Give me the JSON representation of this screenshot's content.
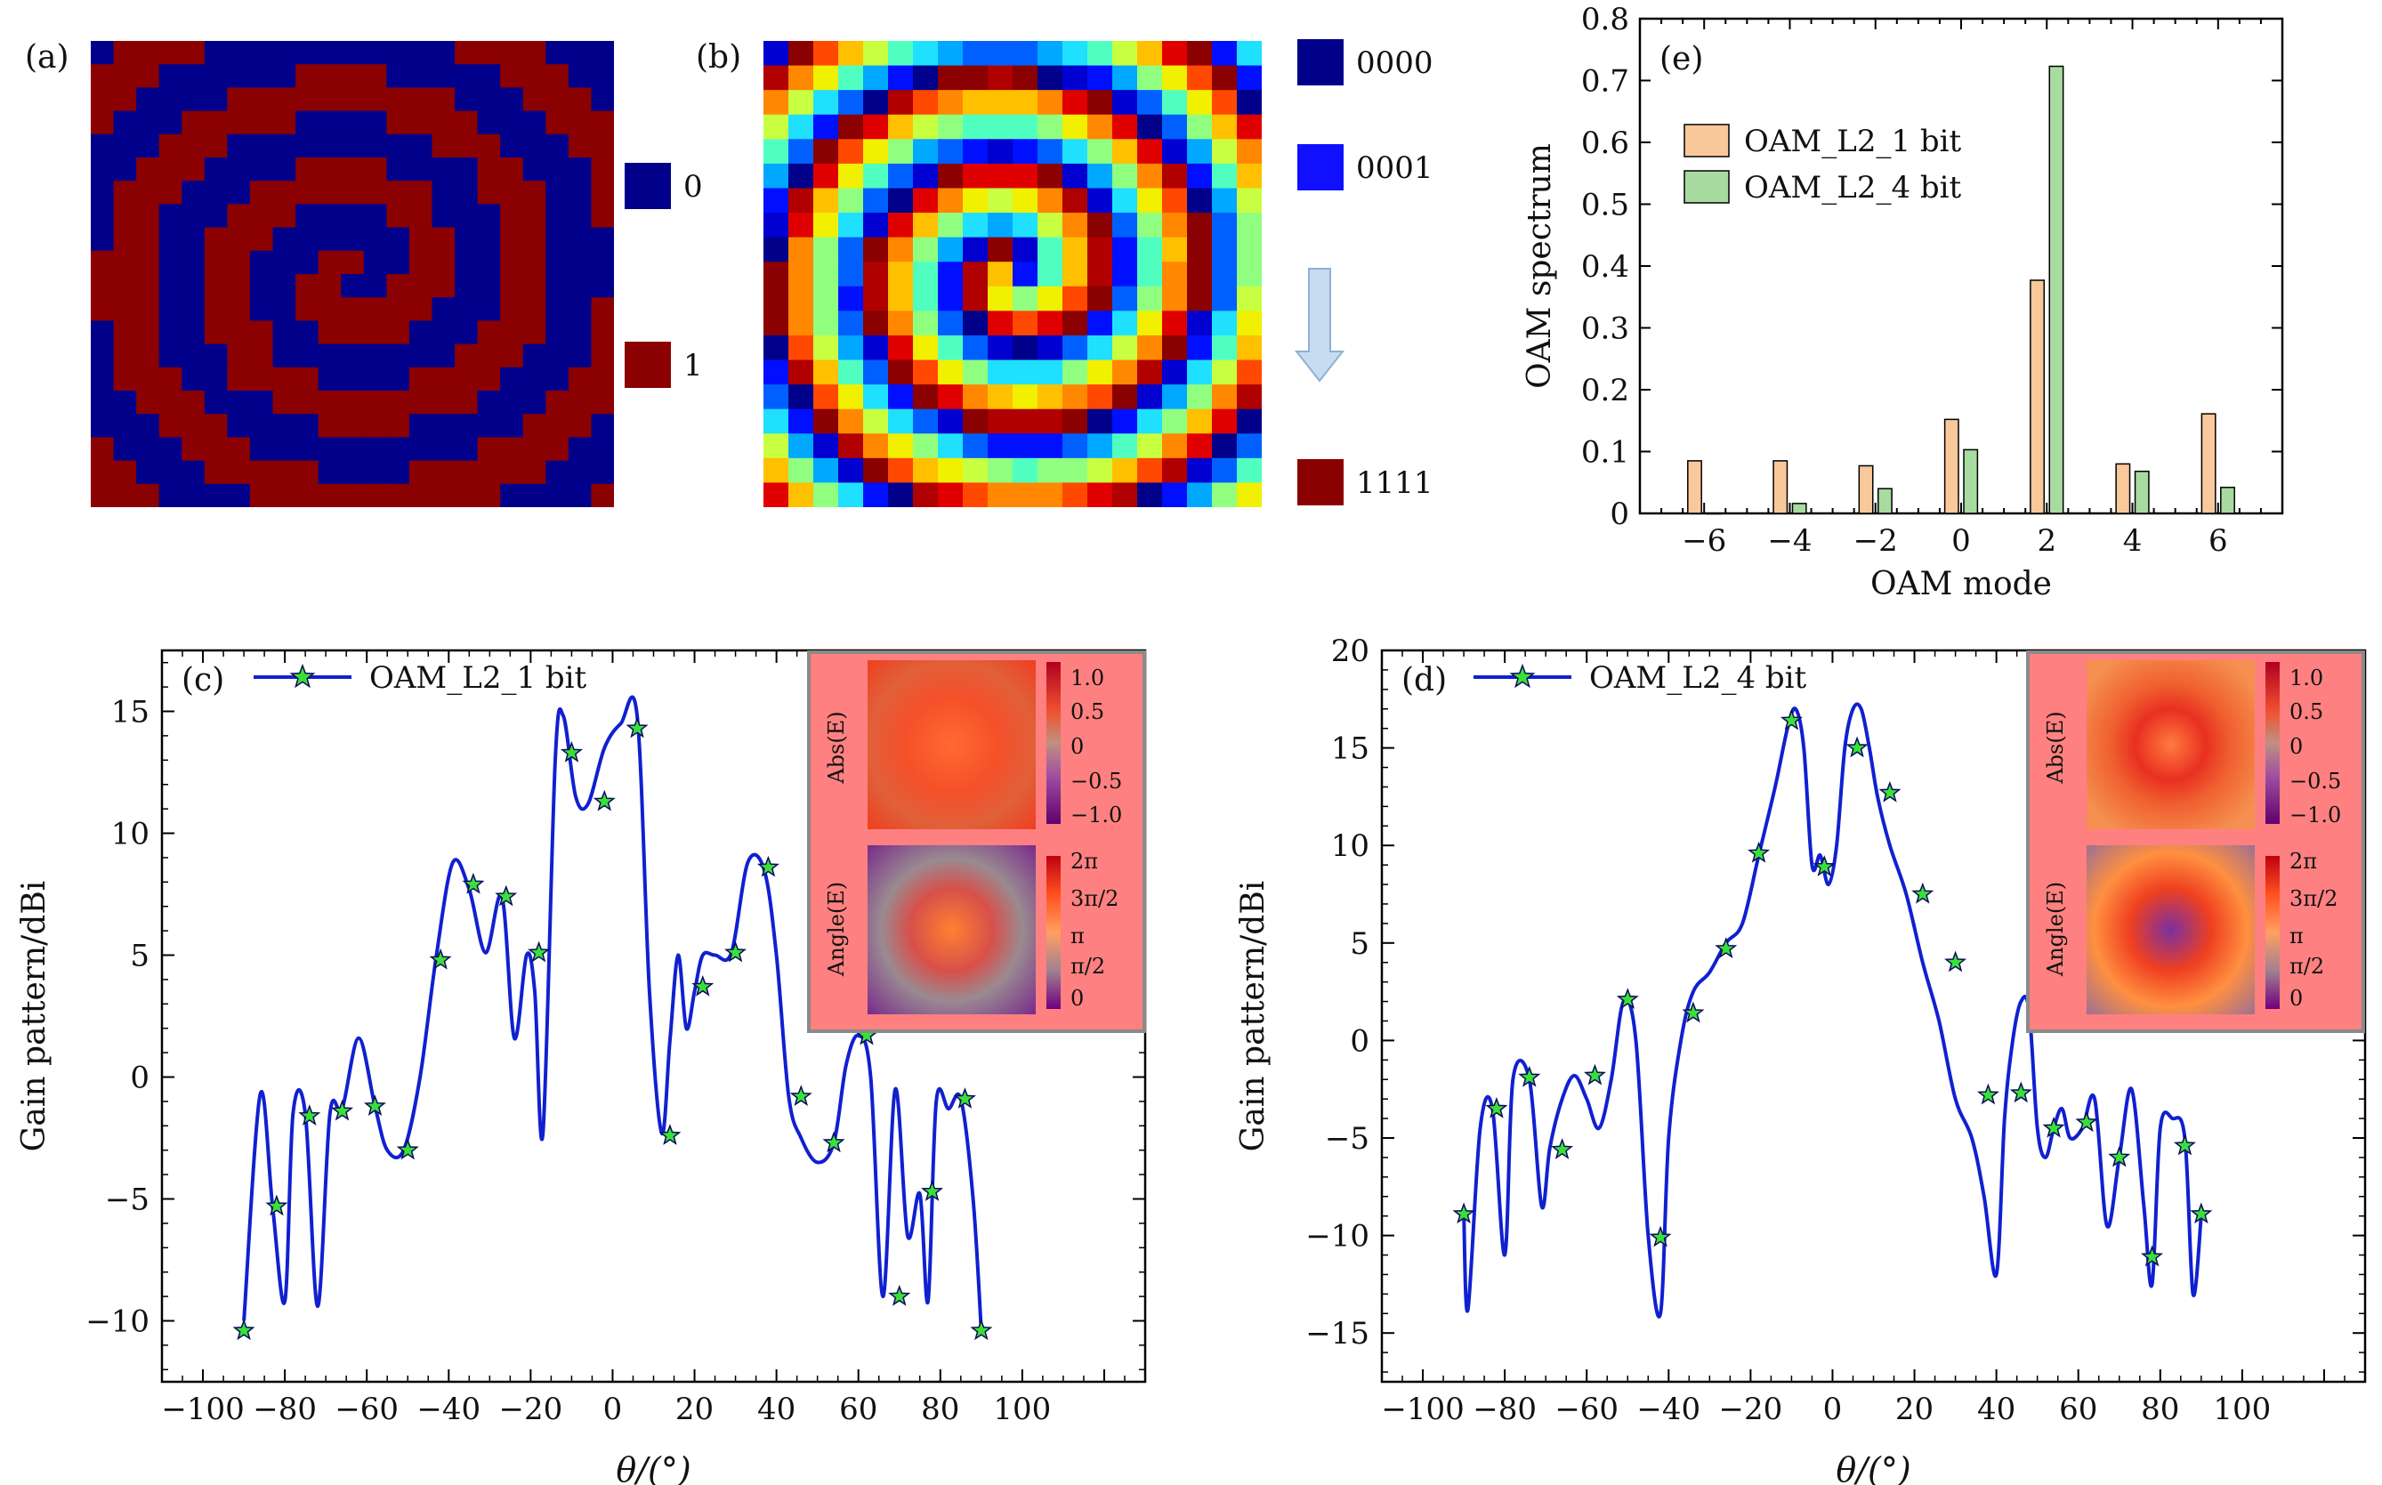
{
  "colors": {
    "binary0": "#00008b",
    "binary1": "#8b0000",
    "bar1": "#f9c89b",
    "bar4": "#a8dba0",
    "line": "#1020d0",
    "marker": "#39e039",
    "inset_bg": "#ff8080"
  },
  "panel_a": {
    "label": "(a)",
    "legend": [
      {
        "value": "0",
        "color": "#00008b"
      },
      {
        "value": "1",
        "color": "#8b0000"
      }
    ]
  },
  "panel_b": {
    "label": "(b)",
    "legend": [
      {
        "value": "0000",
        "color": "#00008b"
      },
      {
        "value": "0001",
        "color": "#1010ff"
      },
      {
        "value": "1111",
        "color": "#8b0000"
      }
    ]
  },
  "inset": {
    "abs_label": "Abs(E)",
    "angle_label": "Angle(E)",
    "abs_ticks": [
      "1.0",
      "0.5",
      "0",
      "−0.5",
      "−1.0"
    ],
    "angle_ticks": [
      "2π",
      "3π/2",
      "π",
      "π/2",
      "0"
    ]
  },
  "chart_data": [
    {
      "id": "e",
      "label": "(e)",
      "type": "bar",
      "xlabel": "OAM mode",
      "ylabel": "OAM spectrum",
      "categories": [
        -6,
        -4,
        -2,
        0,
        2,
        4,
        6
      ],
      "xticks": [
        "−6",
        "−4",
        "−2",
        "0",
        "2",
        "4",
        "6"
      ],
      "xlim": [
        -7.5,
        7.5
      ],
      "ylim": [
        0,
        0.8
      ],
      "yticks": [
        "0",
        "0.1",
        "0.2",
        "0.3",
        "0.4",
        "0.5",
        "0.6",
        "0.7",
        "0.8"
      ],
      "legend_position": "upper-left",
      "series": [
        {
          "name": "OAM_L2_1 bit",
          "values": [
            0.085,
            0.085,
            0.077,
            0.152,
            0.377,
            0.08,
            0.161
          ]
        },
        {
          "name": "OAM_L2_4 bit",
          "values": [
            0.0,
            0.016,
            0.04,
            0.103,
            0.723,
            0.068,
            0.042
          ]
        }
      ]
    },
    {
      "id": "c",
      "label": "(c)",
      "type": "line",
      "xlabel": "θ/(°)",
      "ylabel": "Gain pattern/dBi",
      "xlim": [
        -110,
        130
      ],
      "ylim": [
        -12.5,
        17.5
      ],
      "xticks": [
        "−100",
        "−80",
        "−60",
        "−40",
        "−20",
        "0",
        "20",
        "40",
        "60",
        "80",
        "100"
      ],
      "yticks": [
        "−10",
        "−5",
        "0",
        "5",
        "10",
        "15"
      ],
      "series": [
        {
          "name": "OAM_L2_1 bit",
          "x": [
            -90,
            -86,
            -83,
            -80,
            -78,
            -75,
            -72,
            -69,
            -66,
            -62,
            -58,
            -55,
            -51,
            -47,
            -43,
            -39,
            -35,
            -31,
            -27,
            -24,
            -21,
            -19,
            -17,
            -14,
            -12,
            -9,
            -6,
            -2,
            2,
            6,
            9,
            12,
            14,
            16,
            18,
            20,
            22,
            25,
            29,
            33,
            37,
            40,
            43,
            46,
            50,
            54,
            57,
            60,
            63,
            66,
            69,
            72,
            75,
            77,
            79,
            82,
            85,
            88,
            90
          ],
          "y": [
            -10.0,
            -0.7,
            -5.3,
            -9.2,
            -1.5,
            -1.5,
            -9.4,
            -1.5,
            -1.3,
            1.6,
            -1.2,
            -3.0,
            -3.0,
            0.0,
            5.0,
            8.8,
            7.7,
            5.1,
            7.4,
            1.6,
            5.0,
            3.5,
            -2.3,
            13.0,
            14.8,
            11.5,
            11.2,
            13.5,
            14.5,
            14.8,
            3.5,
            -2.3,
            1.5,
            5.0,
            2.0,
            3.5,
            5.0,
            5.0,
            5.1,
            8.8,
            8.5,
            5.0,
            -0.8,
            -2.5,
            -3.5,
            -2.7,
            0.5,
            1.7,
            0.0,
            -9.0,
            -0.5,
            -6.5,
            -4.8,
            -9.2,
            -1.0,
            -1.3,
            -0.9,
            -5.0,
            -10.4
          ]
        }
      ],
      "markers": {
        "x": [
          -90,
          -82,
          -74,
          -66,
          -58,
          -50,
          -42,
          -34,
          -26,
          -18,
          -10,
          -2,
          6,
          14,
          22,
          30,
          38,
          46,
          54,
          62,
          70,
          78,
          86,
          90
        ],
        "y": [
          -10.4,
          -5.3,
          -1.6,
          -1.4,
          -1.2,
          -3.0,
          4.8,
          7.9,
          7.4,
          5.1,
          13.3,
          11.3,
          14.3,
          -2.4,
          3.7,
          5.1,
          8.6,
          -0.8,
          -2.7,
          1.7,
          -9.0,
          -4.7,
          -0.9,
          -10.4
        ]
      }
    },
    {
      "id": "d",
      "label": "(d)",
      "type": "line",
      "xlabel": "θ/(°)",
      "ylabel": "Gain pattern/dBi",
      "xlim": [
        -110,
        130
      ],
      "ylim": [
        -17.5,
        20
      ],
      "xticks": [
        "−100",
        "−80",
        "−60",
        "−40",
        "−20",
        "0",
        "20",
        "40",
        "60",
        "80",
        "100"
      ],
      "yticks": [
        "−15",
        "−10",
        "−5",
        "0",
        "5",
        "10",
        "15",
        "20"
      ],
      "series": [
        {
          "name": "OAM_L2_4 bit",
          "x": [
            -90,
            -89,
            -86,
            -83,
            -80,
            -78,
            -74,
            -71,
            -69,
            -66,
            -63,
            -60,
            -57,
            -54,
            -51,
            -48,
            -45,
            -42,
            -40,
            -37,
            -34,
            -30,
            -26,
            -22,
            -18,
            -14,
            -11,
            -9,
            -7,
            -5,
            -3,
            -1,
            1,
            3,
            5,
            7,
            9,
            11,
            14,
            18,
            22,
            26,
            30,
            34,
            37,
            40,
            42,
            44,
            46,
            48,
            50,
            52,
            54,
            56,
            58,
            61,
            64,
            67,
            70,
            73,
            76,
            78,
            80,
            83,
            86,
            88,
            90
          ],
          "y": [
            -9.0,
            -13.8,
            -4.5,
            -3.5,
            -11.0,
            -2.0,
            -2.0,
            -8.5,
            -5.5,
            -3.0,
            -1.8,
            -3.0,
            -4.5,
            -2.0,
            2.0,
            0.0,
            -10.0,
            -14.0,
            -5.0,
            0.0,
            2.5,
            3.5,
            5.0,
            6.0,
            9.5,
            13.0,
            16.0,
            17.0,
            15.0,
            9.0,
            9.5,
            8.0,
            10.0,
            15.0,
            17.0,
            17.0,
            15.0,
            12.5,
            10.0,
            7.5,
            4.0,
            1.0,
            -3.0,
            -5.0,
            -8.0,
            -12.0,
            -4.0,
            0.0,
            2.0,
            1.5,
            -4.5,
            -6.0,
            -4.5,
            -3.5,
            -5.0,
            -4.5,
            -3.0,
            -9.5,
            -6.0,
            -2.5,
            -8.5,
            -12.5,
            -4.5,
            -4.0,
            -5.0,
            -13.0,
            -9.0
          ]
        }
      ],
      "markers": {
        "x": [
          -90,
          -82,
          -74,
          -66,
          -58,
          -50,
          -42,
          -34,
          -26,
          -18,
          -10,
          -2,
          6,
          14,
          22,
          30,
          38,
          46,
          54,
          62,
          70,
          78,
          86,
          90
        ],
        "y": [
          -8.9,
          -3.5,
          -1.9,
          -5.6,
          -1.8,
          2.1,
          -10.1,
          1.4,
          4.7,
          9.6,
          16.4,
          8.9,
          15.0,
          12.7,
          7.5,
          4.0,
          -2.8,
          -2.7,
          -4.5,
          -4.2,
          -6.0,
          -11.1,
          -5.4,
          -8.9
        ]
      }
    }
  ]
}
